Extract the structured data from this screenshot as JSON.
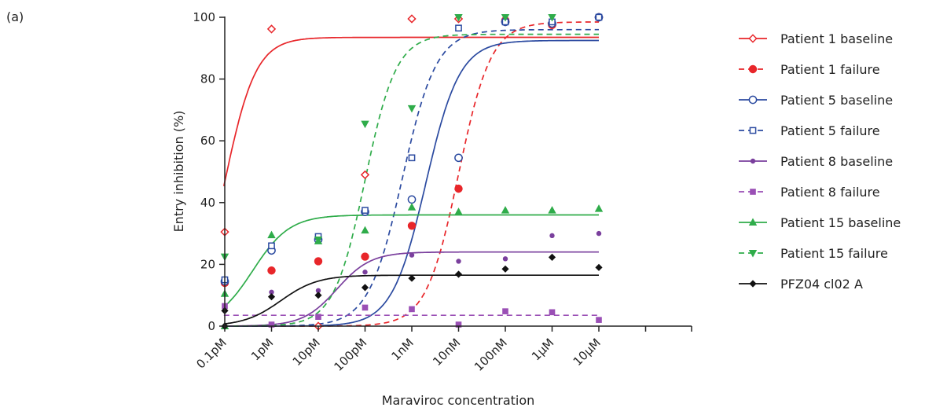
{
  "chart_data": {
    "type": "scatter",
    "panel_label": "(a)",
    "xlabel": "Maraviroc concentration",
    "ylabel": "Entry inhibition (%)",
    "x_scale": "log",
    "xlim_log10M": [
      -13.0,
      -4.3
    ],
    "ylim": [
      0,
      100
    ],
    "yticks": [
      0,
      20,
      40,
      60,
      80,
      100
    ],
    "x_tick_labels": [
      "0.1pM",
      "1pM",
      "10pM",
      "100pM",
      "1nM",
      "10nM",
      "100nM",
      "1µM",
      "10µM"
    ],
    "x_tick_log10M": [
      -13,
      -12,
      -11,
      -10,
      -9,
      -8,
      -7,
      -6,
      -5
    ],
    "grid": false,
    "legend_position": "right",
    "series": [
      {
        "name": "Patient 1 baseline",
        "color": "#e8262a",
        "marker": "diamond-open",
        "line": "solid",
        "x": [
          -13,
          -12,
          -11,
          -10,
          -9,
          -8,
          -7,
          -6,
          -5
        ],
        "y": [
          30.5,
          96.2,
          0,
          49,
          99.5,
          99.5,
          98.5,
          97.5,
          100
        ],
        "fit": {
          "bottom": 0,
          "top": 93.5,
          "log_ec50": -13.0,
          "hill": 1.3
        }
      },
      {
        "name": "Patient 1 failure",
        "color": "#e8262a",
        "marker": "circle-filled",
        "line": "dashed",
        "x": [
          -13,
          -12,
          -11,
          -10,
          -9,
          -8,
          -7,
          -6,
          -5
        ],
        "y": [
          14,
          18,
          21,
          22.5,
          32.5,
          44.5,
          99,
          97.5,
          100
        ],
        "fit": {
          "bottom": 0,
          "top": 98.5,
          "log_ec50": -8.0,
          "hill": 1.25
        }
      },
      {
        "name": "Patient 5 baseline",
        "color": "#2b4aa0",
        "marker": "circle-open",
        "line": "solid",
        "x": [
          -13,
          -12,
          -11,
          -10,
          -9,
          -8,
          -7,
          -6,
          -5
        ],
        "y": [
          14.5,
          24.5,
          28,
          37,
          41,
          54.5,
          98.5,
          98,
          100
        ],
        "fit": {
          "bottom": 0,
          "top": 92.5,
          "log_ec50": -8.7,
          "hill": 1.2
        }
      },
      {
        "name": "Patient 5 failure",
        "color": "#2b4aa0",
        "marker": "square-open",
        "line": "dashed",
        "x": [
          -13,
          -12,
          -11,
          -10,
          -9,
          -8,
          -7,
          -6,
          -5
        ],
        "y": [
          15,
          26,
          29,
          37.5,
          54.5,
          96.5,
          98.5,
          98.5,
          100
        ],
        "fit": {
          "bottom": 0,
          "top": 96,
          "log_ec50": -9.2,
          "hill": 1.2
        }
      },
      {
        "name": "Patient 8 baseline",
        "color": "#7a3f9d",
        "marker": "circle-small",
        "line": "solid",
        "x": [
          -12,
          -11,
          -10,
          -9,
          -8,
          -7,
          -6,
          -5
        ],
        "y": [
          11,
          11.5,
          17.5,
          23,
          21,
          21.8,
          29.3,
          30
        ],
        "fit": {
          "bottom": 0,
          "top": 24,
          "log_ec50": -10.6,
          "hill": 1.2
        }
      },
      {
        "name": "Patient 8 failure",
        "color": "#9a4fb5",
        "marker": "square-filled",
        "line": "dashed",
        "x": [
          -13,
          -12,
          -11,
          -10,
          -9,
          -8,
          -7,
          -6,
          -5
        ],
        "y": [
          6.5,
          0.5,
          3,
          6,
          5.5,
          0.5,
          4.8,
          4.5,
          2
        ],
        "fit": {
          "bottom": 3.5,
          "top": 3.5,
          "log_ec50": -10,
          "hill": 1
        }
      },
      {
        "name": "Patient 15 baseline",
        "color": "#2fac4a",
        "marker": "triangle-up",
        "line": "solid",
        "x": [
          -14,
          -13,
          -12,
          -11,
          -10,
          -9,
          -8,
          -7,
          -6,
          -5
        ],
        "y": [
          0,
          10.5,
          29.5,
          27.5,
          31,
          38.5,
          37,
          37.5,
          37.5,
          38
        ],
        "fit": {
          "bottom": 0,
          "top": 36,
          "log_ec50": -12.4,
          "hill": 1.1
        }
      },
      {
        "name": "Patient 15 failure",
        "color": "#2fac4a",
        "marker": "triangle-down",
        "line": "dashed",
        "x": [
          -13,
          -11,
          -10,
          -9,
          -8,
          -7,
          -6
        ],
        "y": [
          22.5,
          28,
          65.5,
          70.5,
          100,
          100,
          100
        ],
        "fit": {
          "bottom": 0,
          "top": 94.5,
          "log_ec50": -10.0,
          "hill": 1.3
        }
      },
      {
        "name": "PFZ04 cl02 A",
        "color": "#111111",
        "marker": "diamond-filled",
        "line": "solid",
        "x": [
          -14,
          -13,
          -12,
          -11,
          -10,
          -9,
          -8,
          -7,
          -6,
          -5
        ],
        "y": [
          0,
          5,
          9.5,
          10,
          12.5,
          15.5,
          16.8,
          18.5,
          22.3,
          19
        ],
        "fit": {
          "bottom": 0,
          "top": 16.5,
          "log_ec50": -11.8,
          "hill": 1.1
        }
      }
    ]
  }
}
